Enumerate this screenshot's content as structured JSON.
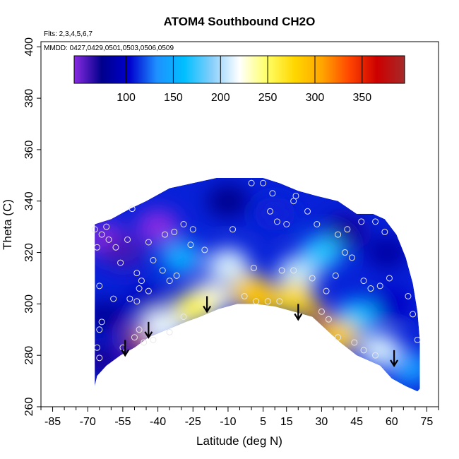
{
  "chart_data": {
    "type": "heatmap",
    "title": "ATOM4 Southbound CH2O",
    "flights_label": "Flts: 2,3,4,5,6,7",
    "dates_label": "MMDD: 0427,0429,0501,0503,0506,0509",
    "xlabel": "Latitude (deg N)",
    "ylabel": "Theta (C)",
    "xlim": [
      -90,
      80
    ],
    "ylim": [
      260,
      402
    ],
    "x_ticks": [
      -85,
      -70,
      -55,
      -40,
      -25,
      -10,
      5,
      15,
      30,
      45,
      60,
      75
    ],
    "x_tick_labels": [
      "-85",
      "-70",
      "-55",
      "-40",
      "-25",
      "-10",
      "5",
      "15",
      "30",
      "45",
      "60",
      "75"
    ],
    "y_ticks": [
      260,
      280,
      300,
      320,
      340,
      360,
      380,
      400
    ],
    "y_tick_labels": [
      "260",
      "280",
      "300",
      "320",
      "340",
      "360",
      "380",
      "400"
    ],
    "colorbar": {
      "range": [
        45,
        395
      ],
      "ticks": [
        100,
        150,
        200,
        250,
        300,
        350
      ],
      "tick_labels": [
        "100",
        "150",
        "200",
        "250",
        "300",
        "350"
      ],
      "colors": [
        "#8a2be2",
        "#00008b",
        "#0000cd",
        "#1e90ff",
        "#00bfff",
        "#87cefa",
        "#ffffff",
        "#ffff66",
        "#ffd700",
        "#ffa500",
        "#ff4500",
        "#cc0000",
        "#a52a2a"
      ]
    },
    "top_boundary": [
      {
        "lat": -67,
        "theta": 331
      },
      {
        "lat": -60,
        "theta": 333
      },
      {
        "lat": -52,
        "theta": 337
      },
      {
        "lat": -45,
        "theta": 340
      },
      {
        "lat": -35,
        "theta": 345
      },
      {
        "lat": -25,
        "theta": 347
      },
      {
        "lat": -15,
        "theta": 349
      },
      {
        "lat": -5,
        "theta": 349
      },
      {
        "lat": 5,
        "theta": 349
      },
      {
        "lat": 12,
        "theta": 347
      },
      {
        "lat": 20,
        "theta": 344
      },
      {
        "lat": 28,
        "theta": 342
      },
      {
        "lat": 37,
        "theta": 340
      },
      {
        "lat": 45,
        "theta": 335
      },
      {
        "lat": 52,
        "theta": 335
      },
      {
        "lat": 57,
        "theta": 333
      },
      {
        "lat": 62,
        "theta": 327
      },
      {
        "lat": 66,
        "theta": 318
      },
      {
        "lat": 69,
        "theta": 308
      },
      {
        "lat": 71,
        "theta": 297
      },
      {
        "lat": 72,
        "theta": 286
      },
      {
        "lat": 72,
        "theta": 267
      }
    ],
    "bottom_boundary": [
      {
        "lat": 71,
        "theta": 266
      },
      {
        "lat": 66,
        "theta": 268
      },
      {
        "lat": 60,
        "theta": 271
      },
      {
        "lat": 55,
        "theta": 276
      },
      {
        "lat": 50,
        "theta": 278
      },
      {
        "lat": 45,
        "theta": 280
      },
      {
        "lat": 38,
        "theta": 285
      },
      {
        "lat": 32,
        "theta": 290
      },
      {
        "lat": 26,
        "theta": 295
      },
      {
        "lat": 18,
        "theta": 297
      },
      {
        "lat": 10,
        "theta": 299
      },
      {
        "lat": 2,
        "theta": 300
      },
      {
        "lat": -6,
        "theta": 300
      },
      {
        "lat": -14,
        "theta": 298
      },
      {
        "lat": -22,
        "theta": 295
      },
      {
        "lat": -28,
        "theta": 293
      },
      {
        "lat": -36,
        "theta": 290
      },
      {
        "lat": -44,
        "theta": 287
      },
      {
        "lat": -50,
        "theta": 283
      },
      {
        "lat": -56,
        "theta": 280
      },
      {
        "lat": -62,
        "theta": 276
      },
      {
        "lat": -66,
        "theta": 272
      },
      {
        "lat": -67,
        "theta": 268
      }
    ],
    "value_blobs": [
      {
        "lat": -62,
        "theta": 325,
        "value": 40
      },
      {
        "lat": -55,
        "theta": 320,
        "value": 60
      },
      {
        "lat": -40,
        "theta": 330,
        "value": 40
      },
      {
        "lat": -45,
        "theta": 300,
        "value": 95
      },
      {
        "lat": -63,
        "theta": 295,
        "value": 80
      },
      {
        "lat": -64,
        "theta": 278,
        "value": 70
      },
      {
        "lat": -10,
        "theta": 340,
        "value": 75
      },
      {
        "lat": 10,
        "theta": 335,
        "value": 110
      },
      {
        "lat": 40,
        "theta": 328,
        "value": 70
      },
      {
        "lat": 58,
        "theta": 320,
        "value": 85
      },
      {
        "lat": 60,
        "theta": 300,
        "value": 100
      },
      {
        "lat": 45,
        "theta": 295,
        "value": 165
      },
      {
        "lat": 55,
        "theta": 282,
        "value": 210
      },
      {
        "lat": 68,
        "theta": 275,
        "value": 140
      },
      {
        "lat": -30,
        "theta": 318,
        "value": 150
      },
      {
        "lat": -10,
        "theta": 315,
        "value": 210
      },
      {
        "lat": -18,
        "theta": 302,
        "value": 225
      },
      {
        "lat": 20,
        "theta": 312,
        "value": 205
      },
      {
        "lat": -25,
        "theta": 298,
        "value": 255
      },
      {
        "lat": 0,
        "theta": 305,
        "value": 275
      },
      {
        "lat": 3,
        "theta": 302,
        "value": 290
      },
      {
        "lat": 18,
        "theta": 302,
        "value": 275
      },
      {
        "lat": 28,
        "theta": 296,
        "value": 305
      },
      {
        "lat": 32,
        "theta": 291,
        "value": 345
      },
      {
        "lat": 37,
        "theta": 287,
        "value": 285
      },
      {
        "lat": -49,
        "theta": 287,
        "value": 330
      },
      {
        "lat": -48,
        "theta": 284,
        "value": 365
      },
      {
        "lat": -38,
        "theta": 291,
        "value": 215
      },
      {
        "lat": 30,
        "theta": 320,
        "value": 170
      }
    ],
    "arrows": [
      {
        "lat": -54,
        "theta": 286
      },
      {
        "lat": -44,
        "theta": 293
      },
      {
        "lat": -19,
        "theta": 303
      },
      {
        "lat": 20,
        "theta": 300
      },
      {
        "lat": 61,
        "theta": 282
      }
    ],
    "observations": [
      {
        "lat": -67,
        "theta": 329
      },
      {
        "lat": -66,
        "theta": 322
      },
      {
        "lat": -64,
        "theta": 327
      },
      {
        "lat": -62,
        "theta": 330
      },
      {
        "lat": -61,
        "theta": 325
      },
      {
        "lat": -58,
        "theta": 322
      },
      {
        "lat": -56,
        "theta": 316
      },
      {
        "lat": -53,
        "theta": 325
      },
      {
        "lat": -51,
        "theta": 337
      },
      {
        "lat": -49,
        "theta": 312
      },
      {
        "lat": -47,
        "theta": 309
      },
      {
        "lat": -44,
        "theta": 324
      },
      {
        "lat": -42,
        "theta": 317
      },
      {
        "lat": -37,
        "theta": 327
      },
      {
        "lat": -33,
        "theta": 328
      },
      {
        "lat": -29,
        "theta": 331
      },
      {
        "lat": -25,
        "theta": 329
      },
      {
        "lat": -26,
        "theta": 323
      },
      {
        "lat": -20,
        "theta": 321
      },
      {
        "lat": -65,
        "theta": 307
      },
      {
        "lat": -64,
        "theta": 293
      },
      {
        "lat": -65,
        "theta": 290
      },
      {
        "lat": -66,
        "theta": 283
      },
      {
        "lat": -65,
        "theta": 279
      },
      {
        "lat": -59,
        "theta": 302
      },
      {
        "lat": -52,
        "theta": 302
      },
      {
        "lat": -48,
        "theta": 306
      },
      {
        "lat": -49,
        "theta": 301
      },
      {
        "lat": -44,
        "theta": 305
      },
      {
        "lat": -38,
        "theta": 313
      },
      {
        "lat": -35,
        "theta": 309
      },
      {
        "lat": -32,
        "theta": 311
      },
      {
        "lat": -48,
        "theta": 290
      },
      {
        "lat": -50,
        "theta": 287
      },
      {
        "lat": -55,
        "theta": 283
      },
      {
        "lat": -46,
        "theta": 285
      },
      {
        "lat": -42,
        "theta": 286
      },
      {
        "lat": -35,
        "theta": 289
      },
      {
        "lat": -29,
        "theta": 295
      },
      {
        "lat": -8,
        "theta": 329
      },
      {
        "lat": 0,
        "theta": 347
      },
      {
        "lat": 5,
        "theta": 347
      },
      {
        "lat": 9,
        "theta": 343
      },
      {
        "lat": 8,
        "theta": 336
      },
      {
        "lat": 11,
        "theta": 332
      },
      {
        "lat": 15,
        "theta": 331
      },
      {
        "lat": 18,
        "theta": 340
      },
      {
        "lat": 19,
        "theta": 342
      },
      {
        "lat": 24,
        "theta": 336
      },
      {
        "lat": 28,
        "theta": 331
      },
      {
        "lat": 37,
        "theta": 327
      },
      {
        "lat": 41,
        "theta": 329
      },
      {
        "lat": 47,
        "theta": 332
      },
      {
        "lat": 53,
        "theta": 332
      },
      {
        "lat": 57,
        "theta": 328
      },
      {
        "lat": 1,
        "theta": 314
      },
      {
        "lat": 13,
        "theta": 313
      },
      {
        "lat": 18,
        "theta": 313
      },
      {
        "lat": 26,
        "theta": 310
      },
      {
        "lat": 36,
        "theta": 311
      },
      {
        "lat": 40,
        "theta": 320
      },
      {
        "lat": 43,
        "theta": 318
      },
      {
        "lat": 48,
        "theta": 309
      },
      {
        "lat": 51,
        "theta": 306
      },
      {
        "lat": 55,
        "theta": 307
      },
      {
        "lat": 59,
        "theta": 310
      },
      {
        "lat": 67,
        "theta": 303
      },
      {
        "lat": 69,
        "theta": 296
      },
      {
        "lat": 71,
        "theta": 286
      },
      {
        "lat": 32,
        "theta": 305
      },
      {
        "lat": 30,
        "theta": 297
      },
      {
        "lat": 33,
        "theta": 294
      },
      {
        "lat": 37,
        "theta": 287
      },
      {
        "lat": 44,
        "theta": 285
      },
      {
        "lat": 48,
        "theta": 282
      },
      {
        "lat": 53,
        "theta": 280
      },
      {
        "lat": 2,
        "theta": 301
      },
      {
        "lat": 12,
        "theta": 301
      },
      {
        "lat": 7,
        "theta": 301
      },
      {
        "lat": -3,
        "theta": 303
      }
    ]
  }
}
